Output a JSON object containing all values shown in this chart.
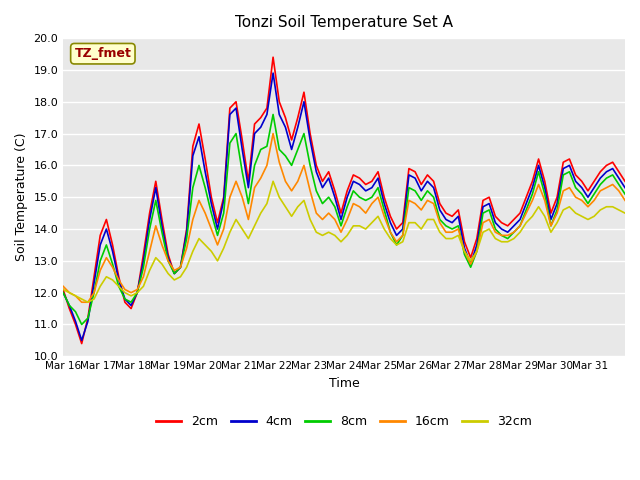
{
  "title": "Tonzi Soil Temperature Set A",
  "xlabel": "Time",
  "ylabel": "Soil Temperature (C)",
  "annotation": "TZ_fmet",
  "ylim": [
    10.0,
    20.0
  ],
  "yticks": [
    10.0,
    11.0,
    12.0,
    13.0,
    14.0,
    15.0,
    16.0,
    17.0,
    18.0,
    19.0,
    20.0
  ],
  "bg_color": "#e8e8e8",
  "legend_labels": [
    "2cm",
    "4cm",
    "8cm",
    "16cm",
    "32cm"
  ],
  "legend_colors": [
    "#ff0000",
    "#0000cc",
    "#00cc00",
    "#ff8800",
    "#cccc00"
  ],
  "x_tick_labels": [
    "Mar 16",
    "Mar 17",
    "Mar 18",
    "Mar 19",
    "Mar 20",
    "Mar 21",
    "Mar 22",
    "Mar 23",
    "Mar 24",
    "Mar 25",
    "Mar 26",
    "Mar 27",
    "Mar 28",
    "Mar 29",
    "Mar 30",
    "Mar 31",
    ""
  ],
  "series_2cm": [
    12.1,
    11.5,
    11.0,
    10.4,
    11.2,
    12.5,
    13.8,
    14.3,
    13.5,
    12.5,
    11.7,
    11.5,
    12.0,
    13.2,
    14.5,
    15.5,
    14.3,
    13.2,
    12.6,
    12.8,
    14.0,
    16.6,
    17.3,
    16.2,
    15.0,
    14.2,
    15.0,
    17.8,
    18.0,
    16.8,
    15.5,
    17.3,
    17.5,
    17.8,
    19.4,
    18.0,
    17.5,
    16.8,
    17.5,
    18.3,
    17.0,
    16.0,
    15.5,
    15.8,
    15.2,
    14.5,
    15.2,
    15.7,
    15.6,
    15.4,
    15.5,
    15.8,
    15.0,
    14.4,
    14.0,
    14.2,
    15.9,
    15.8,
    15.4,
    15.7,
    15.5,
    14.8,
    14.5,
    14.4,
    14.6,
    13.6,
    13.1,
    13.7,
    14.9,
    15.0,
    14.4,
    14.2,
    14.1,
    14.3,
    14.5,
    15.0,
    15.5,
    16.2,
    15.5,
    14.5,
    15.0,
    16.1,
    16.2,
    15.7,
    15.5,
    15.2,
    15.5,
    15.8,
    16.0,
    16.1,
    15.8,
    15.5
  ],
  "series_4cm": [
    12.0,
    11.6,
    11.1,
    10.5,
    11.1,
    12.3,
    13.5,
    14.0,
    13.3,
    12.4,
    11.8,
    11.6,
    12.0,
    13.0,
    14.3,
    15.3,
    14.1,
    13.1,
    12.6,
    12.8,
    13.9,
    16.3,
    16.9,
    15.8,
    14.8,
    14.0,
    14.9,
    17.6,
    17.8,
    16.5,
    15.3,
    17.0,
    17.2,
    17.6,
    18.9,
    17.6,
    17.2,
    16.5,
    17.2,
    18.0,
    16.8,
    15.8,
    15.3,
    15.6,
    15.0,
    14.3,
    15.0,
    15.5,
    15.4,
    15.2,
    15.3,
    15.6,
    14.8,
    14.2,
    13.8,
    14.0,
    15.7,
    15.6,
    15.2,
    15.5,
    15.3,
    14.6,
    14.3,
    14.2,
    14.4,
    13.4,
    12.9,
    13.5,
    14.7,
    14.8,
    14.2,
    14.0,
    13.9,
    14.1,
    14.3,
    14.8,
    15.3,
    16.0,
    15.3,
    14.3,
    14.8,
    15.9,
    16.0,
    15.5,
    15.3,
    15.0,
    15.3,
    15.6,
    15.8,
    15.9,
    15.6,
    15.3
  ],
  "series_8cm": [
    12.0,
    11.6,
    11.4,
    11.0,
    11.2,
    12.0,
    13.0,
    13.5,
    12.9,
    12.2,
    11.8,
    11.7,
    12.0,
    12.8,
    14.0,
    14.9,
    13.9,
    13.0,
    12.6,
    12.8,
    13.7,
    15.3,
    16.0,
    15.3,
    14.5,
    13.8,
    14.5,
    16.7,
    17.0,
    15.8,
    14.8,
    16.0,
    16.5,
    16.6,
    17.6,
    16.5,
    16.3,
    16.0,
    16.5,
    17.0,
    16.0,
    15.2,
    14.8,
    15.0,
    14.7,
    14.1,
    14.7,
    15.2,
    15.0,
    14.9,
    15.0,
    15.3,
    14.6,
    13.9,
    13.5,
    13.8,
    15.3,
    15.2,
    14.9,
    15.2,
    15.0,
    14.3,
    14.1,
    14.0,
    14.1,
    13.2,
    12.8,
    13.3,
    14.5,
    14.6,
    14.0,
    13.8,
    13.7,
    13.9,
    14.1,
    14.6,
    15.1,
    15.8,
    15.1,
    14.1,
    14.6,
    15.7,
    15.8,
    15.3,
    15.1,
    14.8,
    15.1,
    15.4,
    15.6,
    15.7,
    15.4,
    15.1
  ],
  "series_16cm": [
    12.2,
    12.0,
    11.9,
    11.7,
    11.7,
    12.0,
    12.7,
    13.1,
    12.8,
    12.4,
    12.1,
    12.0,
    12.1,
    12.5,
    13.3,
    14.1,
    13.5,
    13.0,
    12.7,
    12.8,
    13.4,
    14.3,
    14.9,
    14.5,
    14.0,
    13.5,
    14.0,
    15.0,
    15.5,
    15.0,
    14.3,
    15.3,
    15.6,
    16.0,
    17.0,
    16.1,
    15.5,
    15.2,
    15.5,
    16.0,
    15.2,
    14.5,
    14.3,
    14.5,
    14.3,
    13.9,
    14.3,
    14.8,
    14.7,
    14.5,
    14.8,
    15.0,
    14.4,
    13.9,
    13.6,
    13.8,
    14.9,
    14.8,
    14.6,
    14.9,
    14.8,
    14.2,
    13.9,
    13.9,
    14.0,
    13.3,
    12.9,
    13.3,
    14.2,
    14.3,
    13.9,
    13.8,
    13.8,
    13.9,
    14.1,
    14.5,
    14.9,
    15.4,
    14.9,
    14.1,
    14.5,
    15.2,
    15.3,
    15.0,
    14.9,
    14.7,
    14.9,
    15.2,
    15.3,
    15.4,
    15.2,
    14.9
  ],
  "series_32cm": [
    12.1,
    12.0,
    11.9,
    11.8,
    11.7,
    11.8,
    12.2,
    12.5,
    12.4,
    12.2,
    12.0,
    11.9,
    12.0,
    12.2,
    12.7,
    13.1,
    12.9,
    12.6,
    12.4,
    12.5,
    12.8,
    13.3,
    13.7,
    13.5,
    13.3,
    13.0,
    13.4,
    13.9,
    14.3,
    14.0,
    13.7,
    14.1,
    14.5,
    14.8,
    15.5,
    15.0,
    14.7,
    14.4,
    14.7,
    14.9,
    14.3,
    13.9,
    13.8,
    13.9,
    13.8,
    13.6,
    13.8,
    14.1,
    14.1,
    14.0,
    14.2,
    14.4,
    14.0,
    13.7,
    13.5,
    13.6,
    14.2,
    14.2,
    14.0,
    14.3,
    14.3,
    13.9,
    13.7,
    13.7,
    13.8,
    13.3,
    13.0,
    13.3,
    13.9,
    14.0,
    13.7,
    13.6,
    13.6,
    13.7,
    13.9,
    14.2,
    14.4,
    14.7,
    14.4,
    13.9,
    14.2,
    14.6,
    14.7,
    14.5,
    14.4,
    14.3,
    14.4,
    14.6,
    14.7,
    14.7,
    14.6,
    14.5
  ]
}
